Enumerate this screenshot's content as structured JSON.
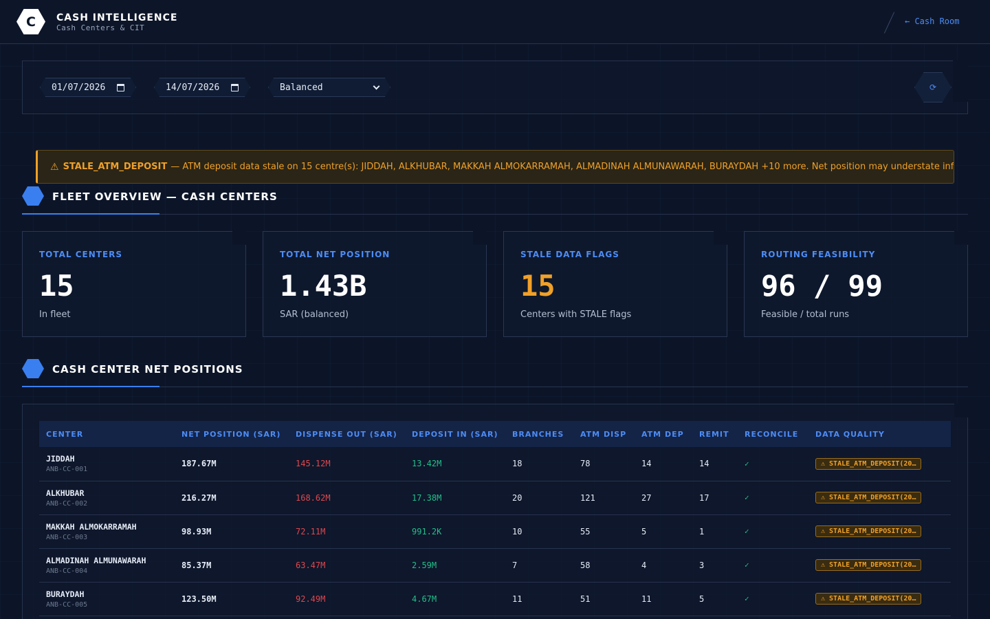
{
  "header": {
    "logo_letter": "C",
    "title": "CASH INTELLIGENCE",
    "subtitle": "Cash Centers & CIT",
    "back_link": "← Cash Room"
  },
  "filters": {
    "start_date": "01/07/2026",
    "end_date": "14/07/2026",
    "mode": "Balanced",
    "refresh_icon": "⟳"
  },
  "alert": {
    "icon": "⚠",
    "code": "STALE_ATM_DEPOSIT",
    "message": "— ATM deposit data stale on 15 centre(s): JIDDAH, ALKHUBAR, MAKKAH ALMOKARRAMAH, ALMADINAH ALMUNAWARAH, BURAYDAH +10 more. Net position may understate inflows."
  },
  "fleet": {
    "title": "FLEET OVERVIEW — CASH CENTERS",
    "cards": [
      {
        "label": "TOTAL CENTERS",
        "value": "15",
        "sub": "In fleet"
      },
      {
        "label": "TOTAL NET POSITION",
        "value": "1.43B",
        "sub": "SAR (balanced)"
      },
      {
        "label": "STALE DATA FLAGS",
        "value": "15",
        "sub": "Centers with STALE flags"
      },
      {
        "label": "ROUTING FEASIBILITY",
        "value": "96 / 99",
        "sub": "Feasible / total runs"
      }
    ]
  },
  "positions": {
    "title": "CASH CENTER NET POSITIONS",
    "columns": [
      "CENTER",
      "NET POSITION (SAR)",
      "DISPENSE OUT (SAR)",
      "DEPOSIT IN (SAR)",
      "BRANCHES",
      "ATM DISP",
      "ATM DEP",
      "REMIT",
      "RECONCILE",
      "DATA QUALITY"
    ],
    "rows": [
      {
        "name": "JIDDAH",
        "code": "ANB-CC-001",
        "net": "187.67M",
        "disp": "145.12M",
        "dep": "13.42M",
        "branches": "18",
        "atm_disp": "78",
        "atm_dep": "14",
        "remit": "14",
        "reconcile": "✓",
        "dq": "⚠ STALE_ATM_DEPOSIT(20…"
      },
      {
        "name": "ALKHUBAR",
        "code": "ANB-CC-002",
        "net": "216.27M",
        "disp": "168.62M",
        "dep": "17.38M",
        "branches": "20",
        "atm_disp": "121",
        "atm_dep": "27",
        "remit": "17",
        "reconcile": "✓",
        "dq": "⚠ STALE_ATM_DEPOSIT(20…"
      },
      {
        "name": "MAKKAH ALMOKARRAMAH",
        "code": "ANB-CC-003",
        "net": "98.93M",
        "disp": "72.11M",
        "dep": "991.2K",
        "branches": "10",
        "atm_disp": "55",
        "atm_dep": "5",
        "remit": "1",
        "reconcile": "✓",
        "dq": "⚠ STALE_ATM_DEPOSIT(20…"
      },
      {
        "name": "ALMADINAH ALMUNAWARAH",
        "code": "ANB-CC-004",
        "net": "85.37M",
        "disp": "63.47M",
        "dep": "2.59M",
        "branches": "7",
        "atm_disp": "58",
        "atm_dep": "4",
        "remit": "3",
        "reconcile": "✓",
        "dq": "⚠ STALE_ATM_DEPOSIT(20…"
      },
      {
        "name": "BURAYDAH",
        "code": "ANB-CC-005",
        "net": "123.50M",
        "disp": "92.49M",
        "dep": "4.67M",
        "branches": "11",
        "atm_disp": "51",
        "atm_dep": "11",
        "remit": "5",
        "reconcile": "✓",
        "dq": "⚠ STALE_ATM_DEPOSIT(20…"
      }
    ]
  },
  "colors": {
    "accent": "#3a7ff0",
    "warning": "#f0a028",
    "negative": "#e0474f",
    "positive": "#22c08a"
  }
}
